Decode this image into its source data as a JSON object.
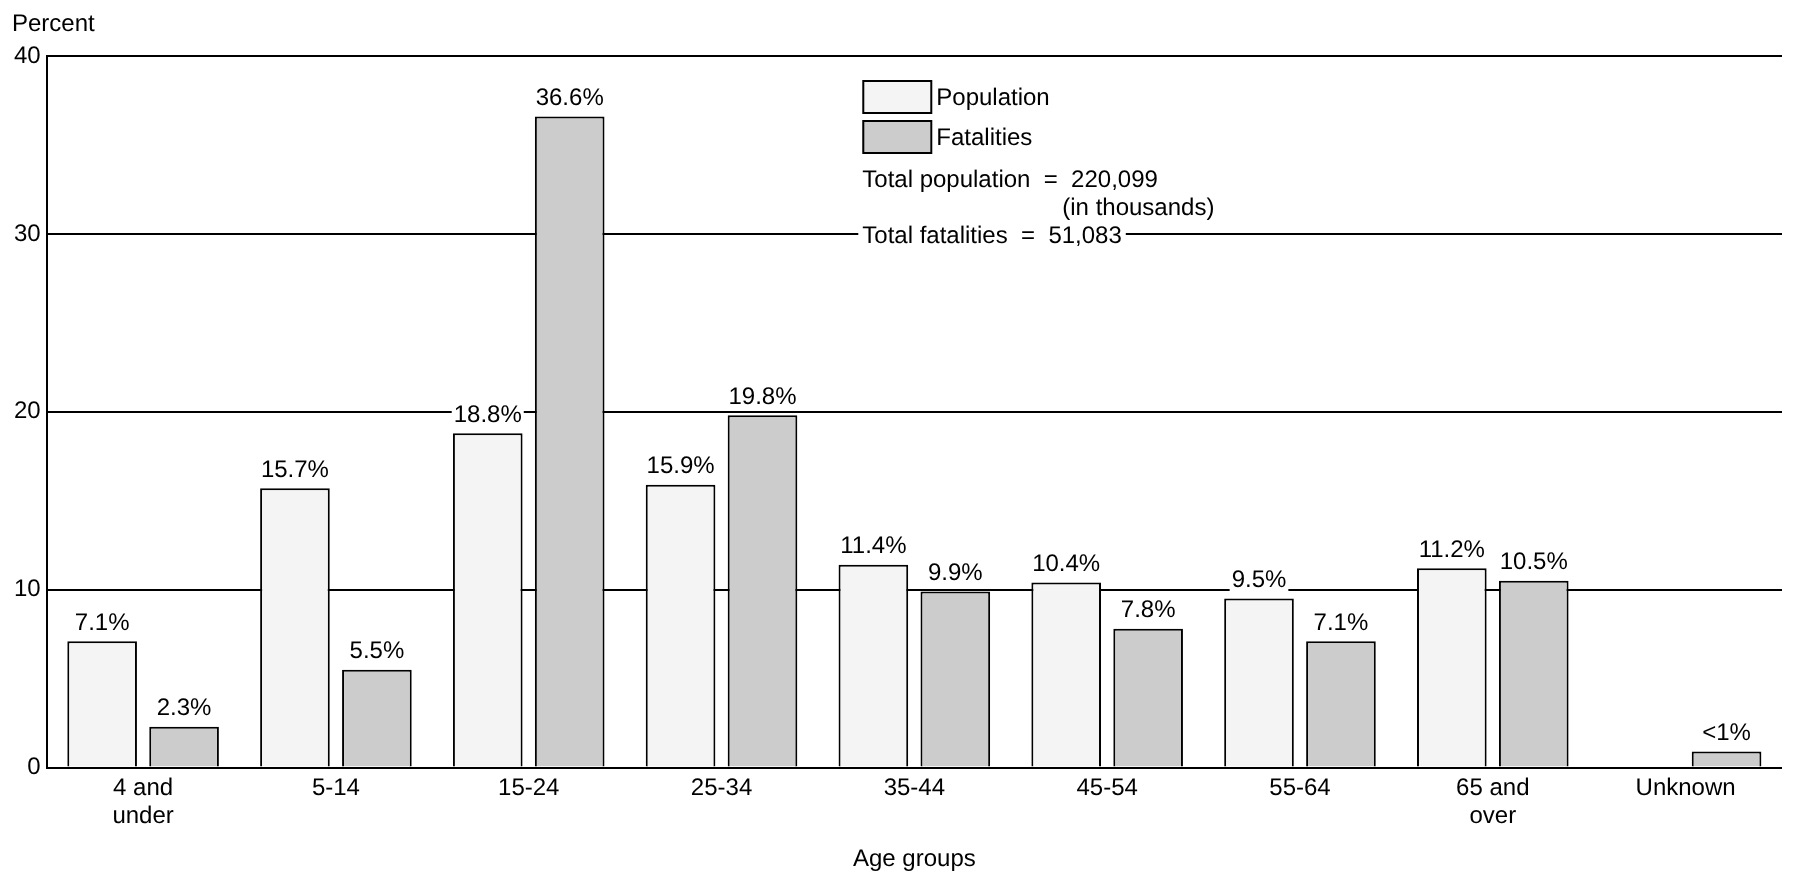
{
  "chart_data": {
    "type": "bar",
    "xlabel": "Age groups",
    "ylabel": "Percent",
    "categories": [
      "4 and under",
      "5-14",
      "15-24",
      "25-34",
      "35-44",
      "45-54",
      "55-64",
      "65 and over",
      "Unknown"
    ],
    "series": [
      {
        "name": "Population",
        "color": "#f4f4f4",
        "values": [
          7.1,
          15.7,
          18.8,
          15.9,
          11.4,
          10.4,
          9.5,
          11.2,
          null
        ],
        "value_labels": [
          "7.1%",
          "15.7%",
          "18.8%",
          "15.9%",
          "11.4%",
          "10.4%",
          "9.5%",
          "11.2%",
          null
        ]
      },
      {
        "name": "Fatalities",
        "color": "#cccccc",
        "values": [
          2.3,
          5.5,
          36.6,
          19.8,
          9.9,
          7.8,
          7.1,
          10.5,
          0.9
        ],
        "value_labels": [
          "2.3%",
          "5.5%",
          "36.6%",
          "19.8%",
          "9.9%",
          "7.8%",
          "7.1%",
          "10.5%",
          "<1%"
        ]
      }
    ],
    "ylim": [
      0,
      40
    ],
    "yticks": [
      0,
      10,
      20,
      30,
      40
    ],
    "grid": "y",
    "legend": "top",
    "annotations": [
      "Total population  =  220,099",
      "(in thousands)",
      "Total fatalities  =  51,083"
    ]
  }
}
